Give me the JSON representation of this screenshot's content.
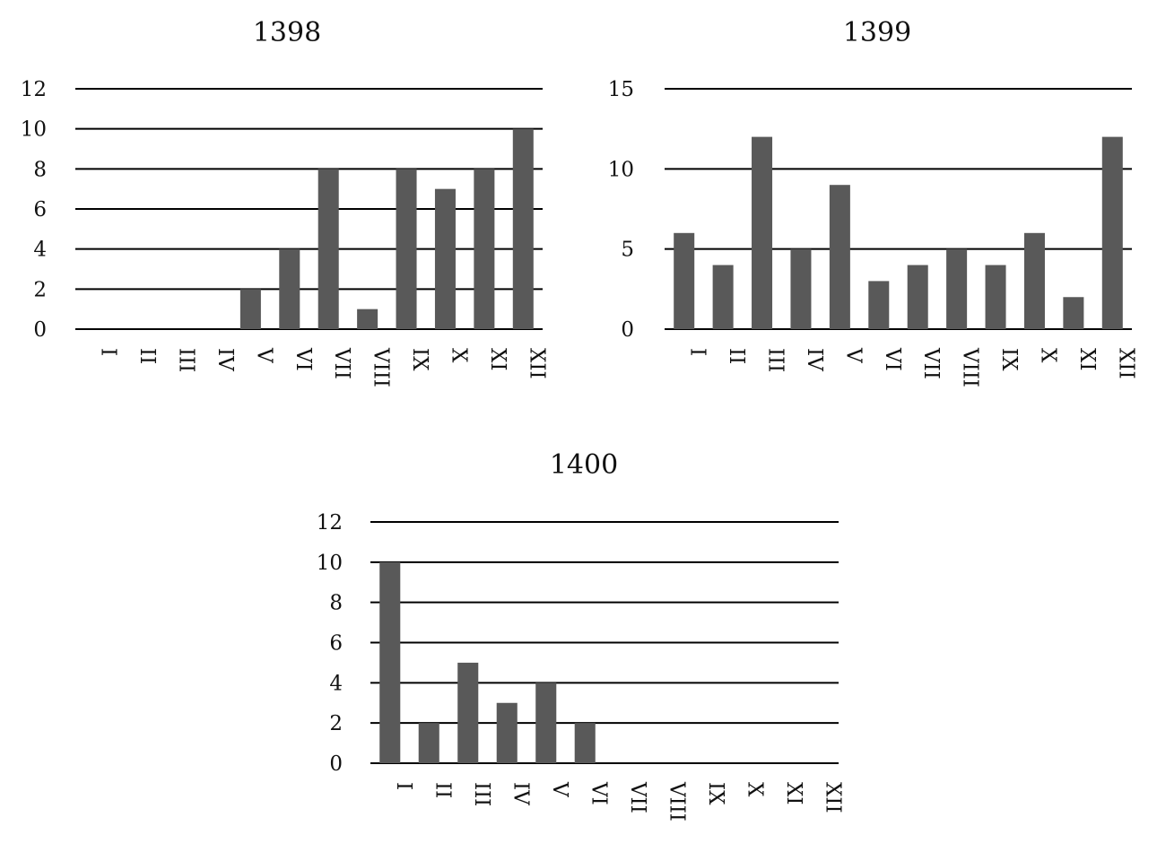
{
  "chart_data": [
    {
      "type": "bar",
      "title": "1398",
      "categories": [
        "I",
        "II",
        "III",
        "IV",
        "V",
        "VI",
        "VII",
        "VIII",
        "IX",
        "X",
        "XI",
        "XII"
      ],
      "values": [
        0,
        0,
        0,
        0,
        2,
        4,
        8,
        1,
        8,
        7,
        8,
        10
      ],
      "yticks": [
        "0",
        "2",
        "4",
        "6",
        "8",
        "10",
        "12"
      ],
      "ylim": [
        0,
        12
      ],
      "grid": true,
      "bar_color": "#595959"
    },
    {
      "type": "bar",
      "title": "1399",
      "categories": [
        "I",
        "II",
        "III",
        "IV",
        "V",
        "VI",
        "VII",
        "VIII",
        "IX",
        "X",
        "XI",
        "XII"
      ],
      "values": [
        6,
        4,
        12,
        5,
        9,
        3,
        4,
        5,
        4,
        6,
        2,
        12
      ],
      "yticks": [
        "0",
        "5",
        "10",
        "15"
      ],
      "ylim": [
        0,
        15
      ],
      "grid": true,
      "bar_color": "#595959"
    },
    {
      "type": "bar",
      "title": "1400",
      "categories": [
        "I",
        "II",
        "III",
        "IV",
        "V",
        "VI",
        "VII",
        "VIII",
        "IX",
        "X",
        "XI",
        "XII"
      ],
      "values": [
        10,
        2,
        5,
        3,
        4,
        2,
        0,
        0,
        0,
        0,
        0,
        0
      ],
      "yticks": [
        "0",
        "2",
        "4",
        "6",
        "8",
        "10",
        "12"
      ],
      "ylim": [
        0,
        12
      ],
      "grid": true,
      "bar_color": "#595959"
    }
  ]
}
